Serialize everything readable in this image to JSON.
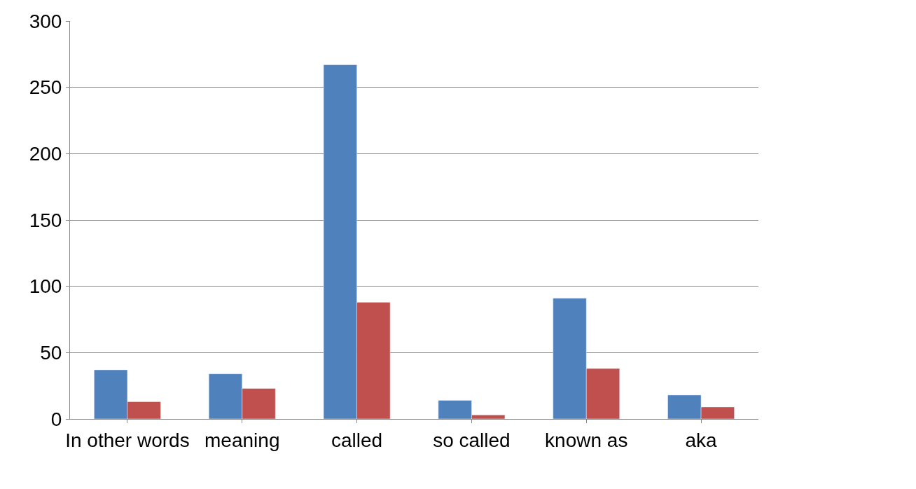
{
  "chart_data": {
    "type": "bar",
    "categories": [
      "In other words",
      "meaning",
      "called",
      "so called",
      "known as",
      "aka"
    ],
    "series": [
      {
        "color": "#4f81bd",
        "values": [
          37,
          34,
          267,
          14,
          91,
          18
        ]
      },
      {
        "color": "#c0504d",
        "values": [
          13,
          23,
          88,
          3,
          38,
          9
        ]
      }
    ],
    "ylim": [
      0,
      300
    ],
    "yticks": [
      0,
      50,
      100,
      150,
      200,
      250,
      300
    ],
    "grid": "y"
  }
}
